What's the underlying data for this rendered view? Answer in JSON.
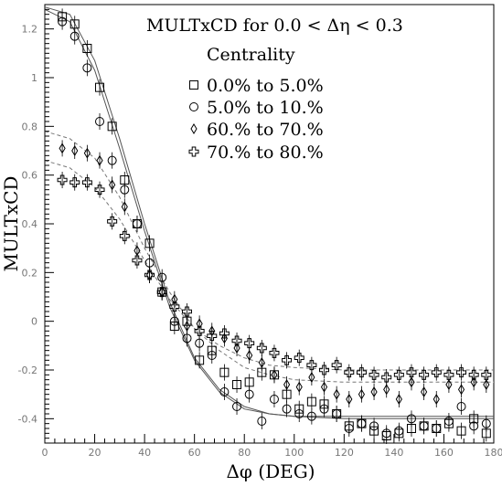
{
  "chart_data": {
    "type": "scatter",
    "title": "MULTxCD  for  0.0 < Δη < 0.3",
    "xlabel": "Δφ (DEG)",
    "ylabel": "MULTxCD",
    "xlim": [
      0,
      180
    ],
    "ylim": [
      -0.5,
      1.3
    ],
    "x_ticks": [
      0,
      20,
      40,
      60,
      80,
      100,
      120,
      140,
      160,
      180
    ],
    "x_tick_labels": [
      "0",
      "20",
      "40",
      "60",
      "80",
      "100",
      "120",
      "140",
      "160",
      "180"
    ],
    "y_ticks": [
      -0.4,
      -0.2,
      0,
      0.2,
      0.4,
      0.6,
      0.8,
      1,
      1.2
    ],
    "y_tick_labels": [
      "-0.4",
      "-0.2",
      "0",
      "0.2",
      "0.4",
      "0.6",
      "0.8",
      "1",
      "1.2"
    ],
    "grid": false,
    "legend": {
      "title": "Centrality",
      "placement": "top-right",
      "entries": [
        {
          "label": "0.0% to 5.0%",
          "marker": "square"
        },
        {
          "label": "5.0% to 10.%",
          "marker": "circle"
        },
        {
          "label": "60.% to 70.%",
          "marker": "diamond"
        },
        {
          "label": "70.% to 80.%",
          "marker": "cross"
        }
      ]
    },
    "series": [
      {
        "name": "0.0% to 5.0%",
        "marker": "square",
        "points": [
          [
            7,
            1.25
          ],
          [
            12,
            1.22
          ],
          [
            17,
            1.12
          ],
          [
            22,
            0.96
          ],
          [
            27,
            0.8
          ],
          [
            32,
            0.58
          ],
          [
            37,
            0.4
          ],
          [
            42,
            0.32
          ],
          [
            47,
            0.12
          ],
          [
            52,
            -0.02
          ],
          [
            57,
            0.0
          ],
          [
            62,
            -0.16
          ],
          [
            67,
            -0.12
          ],
          [
            72,
            -0.21
          ],
          [
            77,
            -0.26
          ],
          [
            82,
            -0.25
          ],
          [
            87,
            -0.21
          ],
          [
            92,
            -0.22
          ],
          [
            97,
            -0.3
          ],
          [
            102,
            -0.36
          ],
          [
            107,
            -0.33
          ],
          [
            112,
            -0.34
          ],
          [
            117,
            -0.38
          ],
          [
            122,
            -0.43
          ],
          [
            127,
            -0.42
          ],
          [
            132,
            -0.45
          ],
          [
            137,
            -0.47
          ],
          [
            142,
            -0.46
          ],
          [
            147,
            -0.44
          ],
          [
            152,
            -0.43
          ],
          [
            157,
            -0.44
          ],
          [
            162,
            -0.42
          ],
          [
            167,
            -0.45
          ],
          [
            172,
            -0.4
          ],
          [
            177,
            -0.46
          ]
        ]
      },
      {
        "name": "5.0% to 10.%",
        "marker": "circle",
        "points": [
          [
            7,
            1.23
          ],
          [
            12,
            1.17
          ],
          [
            17,
            1.04
          ],
          [
            22,
            0.82
          ],
          [
            27,
            0.66
          ],
          [
            32,
            0.54
          ],
          [
            37,
            0.4
          ],
          [
            42,
            0.24
          ],
          [
            47,
            0.18
          ],
          [
            52,
            0.0
          ],
          [
            57,
            -0.07
          ],
          [
            62,
            -0.09
          ],
          [
            67,
            -0.14
          ],
          [
            72,
            -0.29
          ],
          [
            77,
            -0.35
          ],
          [
            82,
            -0.3
          ],
          [
            87,
            -0.41
          ],
          [
            92,
            -0.32
          ],
          [
            97,
            -0.36
          ],
          [
            102,
            -0.38
          ],
          [
            107,
            -0.39
          ],
          [
            112,
            -0.36
          ],
          [
            117,
            -0.38
          ],
          [
            122,
            -0.44
          ],
          [
            127,
            -0.42
          ],
          [
            132,
            -0.43
          ],
          [
            137,
            -0.46
          ],
          [
            142,
            -0.45
          ],
          [
            147,
            -0.4
          ],
          [
            152,
            -0.43
          ],
          [
            157,
            -0.44
          ],
          [
            162,
            -0.41
          ],
          [
            167,
            -0.35
          ],
          [
            172,
            -0.43
          ],
          [
            177,
            -0.42
          ]
        ]
      },
      {
        "name": "60.% to 70.%",
        "marker": "diamond",
        "points": [
          [
            7,
            0.71
          ],
          [
            12,
            0.7
          ],
          [
            17,
            0.69
          ],
          [
            22,
            0.66
          ],
          [
            27,
            0.56
          ],
          [
            32,
            0.47
          ],
          [
            37,
            0.29
          ],
          [
            42,
            0.19
          ],
          [
            47,
            0.12
          ],
          [
            52,
            0.09
          ],
          [
            57,
            -0.02
          ],
          [
            62,
            -0.01
          ],
          [
            67,
            -0.04
          ],
          [
            72,
            -0.07
          ],
          [
            77,
            -0.11
          ],
          [
            82,
            -0.14
          ],
          [
            87,
            -0.17
          ],
          [
            92,
            -0.22
          ],
          [
            97,
            -0.26
          ],
          [
            102,
            -0.27
          ],
          [
            107,
            -0.23
          ],
          [
            112,
            -0.27
          ],
          [
            117,
            -0.3
          ],
          [
            122,
            -0.32
          ],
          [
            127,
            -0.3
          ],
          [
            132,
            -0.29
          ],
          [
            137,
            -0.28
          ],
          [
            142,
            -0.32
          ],
          [
            147,
            -0.25
          ],
          [
            152,
            -0.29
          ],
          [
            157,
            -0.32
          ],
          [
            162,
            -0.26
          ],
          [
            167,
            -0.28
          ],
          [
            172,
            -0.25
          ],
          [
            177,
            -0.26
          ]
        ]
      },
      {
        "name": "70.% to 80.%",
        "marker": "cross",
        "points": [
          [
            7,
            0.58
          ],
          [
            12,
            0.57
          ],
          [
            17,
            0.57
          ],
          [
            22,
            0.54
          ],
          [
            27,
            0.41
          ],
          [
            32,
            0.35
          ],
          [
            37,
            0.25
          ],
          [
            42,
            0.19
          ],
          [
            47,
            0.12
          ],
          [
            52,
            0.06
          ],
          [
            57,
            0.04
          ],
          [
            62,
            -0.04
          ],
          [
            67,
            -0.06
          ],
          [
            72,
            -0.05
          ],
          [
            77,
            -0.08
          ],
          [
            82,
            -0.09
          ],
          [
            87,
            -0.11
          ],
          [
            92,
            -0.13
          ],
          [
            97,
            -0.16
          ],
          [
            102,
            -0.15
          ],
          [
            107,
            -0.18
          ],
          [
            112,
            -0.2
          ],
          [
            117,
            -0.18
          ],
          [
            122,
            -0.21
          ],
          [
            127,
            -0.21
          ],
          [
            132,
            -0.22
          ],
          [
            137,
            -0.23
          ],
          [
            142,
            -0.22
          ],
          [
            147,
            -0.21
          ],
          [
            152,
            -0.22
          ],
          [
            157,
            -0.21
          ],
          [
            162,
            -0.22
          ],
          [
            167,
            -0.21
          ],
          [
            172,
            -0.22
          ],
          [
            177,
            -0.22
          ]
        ]
      }
    ],
    "fits": [
      {
        "style": "solid",
        "points": [
          [
            0,
            1.29
          ],
          [
            10,
            1.26
          ],
          [
            20,
            1.07
          ],
          [
            30,
            0.75
          ],
          [
            40,
            0.4
          ],
          [
            50,
            0.08
          ],
          [
            60,
            -0.15
          ],
          [
            70,
            -0.28
          ],
          [
            80,
            -0.35
          ],
          [
            90,
            -0.38
          ],
          [
            100,
            -0.39
          ],
          [
            120,
            -0.4
          ],
          [
            140,
            -0.4
          ],
          [
            160,
            -0.4
          ],
          [
            180,
            -0.4
          ]
        ]
      },
      {
        "style": "solid",
        "points": [
          [
            0,
            1.28
          ],
          [
            10,
            1.23
          ],
          [
            20,
            1.03
          ],
          [
            30,
            0.71
          ],
          [
            40,
            0.37
          ],
          [
            50,
            0.06
          ],
          [
            60,
            -0.16
          ],
          [
            70,
            -0.29
          ],
          [
            80,
            -0.36
          ],
          [
            90,
            -0.38
          ],
          [
            100,
            -0.39
          ],
          [
            120,
            -0.39
          ],
          [
            140,
            -0.39
          ],
          [
            160,
            -0.39
          ],
          [
            180,
            -0.39
          ]
        ]
      },
      {
        "style": "dashed",
        "points": [
          [
            0,
            0.78
          ],
          [
            10,
            0.75
          ],
          [
            20,
            0.67
          ],
          [
            30,
            0.51
          ],
          [
            40,
            0.3
          ],
          [
            50,
            0.12
          ],
          [
            60,
            -0.03
          ],
          [
            70,
            -0.12
          ],
          [
            80,
            -0.19
          ],
          [
            90,
            -0.22
          ],
          [
            100,
            -0.24
          ],
          [
            120,
            -0.25
          ],
          [
            140,
            -0.25
          ],
          [
            160,
            -0.25
          ],
          [
            180,
            -0.25
          ]
        ]
      },
      {
        "style": "dashed",
        "points": [
          [
            0,
            0.66
          ],
          [
            10,
            0.63
          ],
          [
            20,
            0.55
          ],
          [
            30,
            0.42
          ],
          [
            40,
            0.25
          ],
          [
            50,
            0.09
          ],
          [
            60,
            -0.03
          ],
          [
            70,
            -0.1
          ],
          [
            80,
            -0.15
          ],
          [
            90,
            -0.18
          ],
          [
            100,
            -0.19
          ],
          [
            120,
            -0.2
          ],
          [
            140,
            -0.2
          ],
          [
            160,
            -0.2
          ],
          [
            180,
            -0.2
          ]
        ]
      }
    ]
  }
}
